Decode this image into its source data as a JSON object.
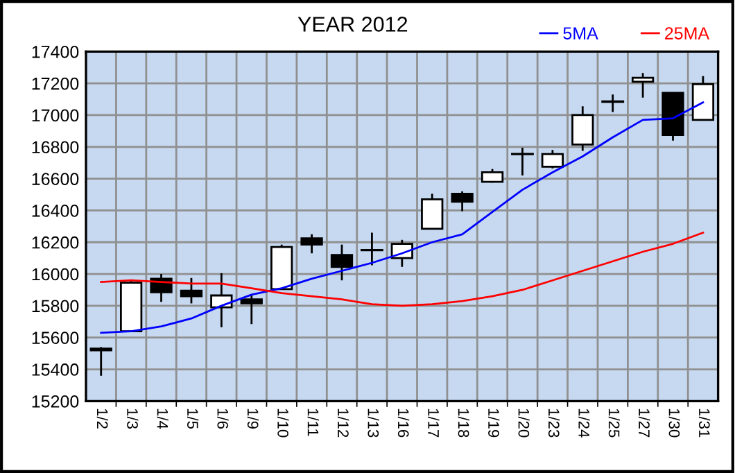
{
  "chart_data": {
    "type": "candlestick",
    "title": "YEAR 2012",
    "categories": [
      "1/2",
      "1/3",
      "1/4",
      "1/5",
      "1/6",
      "1/9",
      "1/10",
      "1/11",
      "1/12",
      "1/13",
      "1/16",
      "1/17",
      "1/18",
      "1/19",
      "1/20",
      "1/23",
      "1/24",
      "1/25",
      "1/27",
      "1/30",
      "1/31"
    ],
    "ohlc": [
      [
        15520,
        15540,
        15360,
        15530
      ],
      [
        15640,
        15965,
        15635,
        15945
      ],
      [
        15970,
        16000,
        15825,
        15885
      ],
      [
        15895,
        15975,
        15815,
        15860
      ],
      [
        15790,
        16005,
        15665,
        15865
      ],
      [
        15840,
        15870,
        15685,
        15815
      ],
      [
        15905,
        16185,
        15900,
        16170
      ],
      [
        16225,
        16250,
        16130,
        16185
      ],
      [
        16120,
        16185,
        15960,
        16045
      ],
      [
        16150,
        16260,
        16055,
        16150
      ],
      [
        16100,
        16215,
        16045,
        16190
      ],
      [
        16285,
        16505,
        16280,
        16470
      ],
      [
        16505,
        16520,
        16395,
        16455
      ],
      [
        16580,
        16660,
        16575,
        16640
      ],
      [
        16755,
        16795,
        16620,
        16755
      ],
      [
        16675,
        16780,
        16665,
        16755
      ],
      [
        16815,
        17055,
        16775,
        17000
      ],
      [
        17085,
        17130,
        17020,
        17085
      ],
      [
        17210,
        17265,
        17110,
        17235
      ],
      [
        17140,
        17140,
        16840,
        16875
      ],
      [
        16970,
        17245,
        16970,
        17195
      ]
    ],
    "series": [
      {
        "type": "line",
        "name": "5MA",
        "color": "#0000ff",
        "values": [
          15630,
          15640,
          15670,
          15720,
          15800,
          15870,
          15910,
          15970,
          16020,
          16070,
          16130,
          16200,
          16250,
          16390,
          16530,
          16640,
          16740,
          16860,
          16970,
          16980,
          17080
        ]
      },
      {
        "type": "line",
        "name": "25MA",
        "color": "#ff0000",
        "values": [
          15950,
          15960,
          15950,
          15940,
          15940,
          15910,
          15880,
          15860,
          15840,
          15810,
          15800,
          15810,
          15830,
          15860,
          15900,
          15960,
          16020,
          16080,
          16140,
          16190,
          16260
        ]
      }
    ],
    "ylim": [
      15200,
      17400
    ],
    "yticks": [
      15200,
      15400,
      15600,
      15800,
      16000,
      16200,
      16400,
      16600,
      16800,
      17000,
      17200,
      17400
    ],
    "grid": true,
    "legend": "top right"
  }
}
